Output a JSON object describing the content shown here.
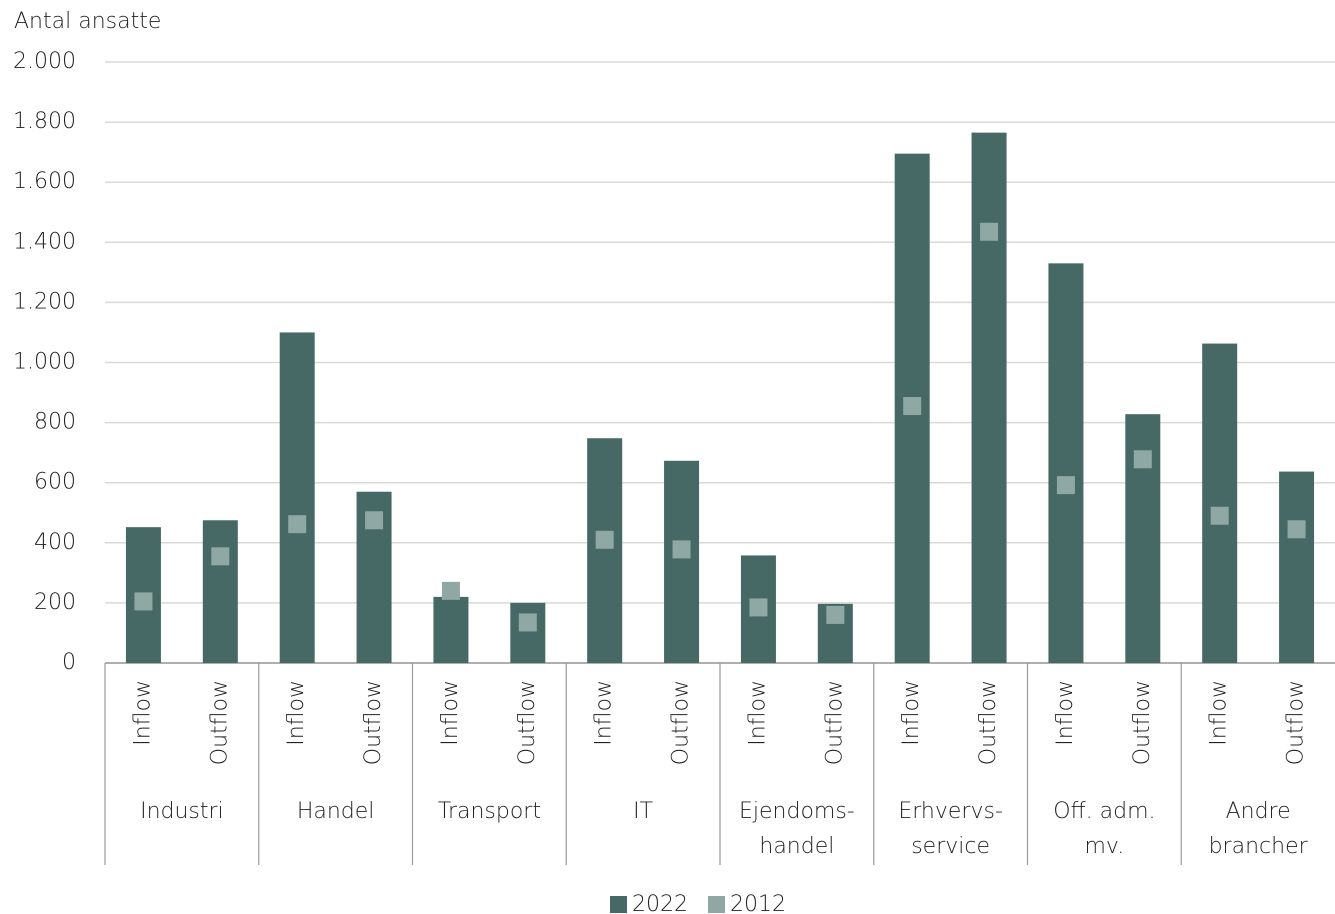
{
  "chart_data": {
    "type": "bar",
    "y_label": "Antal ansatte",
    "categories": [
      "Inflow",
      "Outflow",
      "Inflow",
      "Outflow",
      "Inflow",
      "Outflow",
      "Inflow",
      "Outflow",
      "Inflow",
      "Outflow",
      "Inflow",
      "Outflow",
      "Inflow",
      "Outflow",
      "Inflow",
      "Outflow"
    ],
    "groups": [
      [
        "Industri"
      ],
      [
        "Handel"
      ],
      [
        "Transport"
      ],
      [
        "IT"
      ],
      [
        "Ejendoms-",
        "handel"
      ],
      [
        "Erhvervs-",
        "service"
      ],
      [
        "Off. adm.",
        "mv."
      ],
      [
        "Andre",
        "brancher"
      ]
    ],
    "series": [
      {
        "name": "2022",
        "color": "#466966",
        "mark": "bar",
        "values": [
          452,
          475,
          1100,
          570,
          220,
          200,
          748,
          673,
          358,
          197,
          1695,
          1765,
          1330,
          828,
          1063,
          637
        ]
      },
      {
        "name": "2012",
        "color": "#8fa8a4",
        "mark": "square",
        "values": [
          205,
          355,
          462,
          475,
          240,
          135,
          410,
          378,
          185,
          160,
          855,
          1435,
          592,
          678,
          490,
          445
        ]
      }
    ],
    "ylim": [
      0,
      2000
    ],
    "yticks": [
      0,
      200,
      400,
      600,
      800,
      {
        "value": 1000,
        "label": "1.000"
      },
      {
        "value": 1200,
        "label": "1.200"
      },
      {
        "value": 1400,
        "label": "1.400"
      },
      {
        "value": 1600,
        "label": "1.600"
      },
      {
        "value": 1800,
        "label": "1.800"
      },
      {
        "value": 2000,
        "label": "2.000"
      }
    ],
    "grid": true,
    "legend": "bottom"
  }
}
